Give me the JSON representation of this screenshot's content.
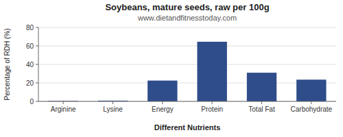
{
  "chart_data": {
    "type": "bar",
    "title": "Soybeans, mature seeds, raw per 100g",
    "subtitle": "www.dietandfitnesstoday.com",
    "xlabel": "Different Nutrients",
    "ylabel": "Percentage of RDH (%)",
    "categories": [
      "Arginine",
      "Lysine",
      "Energy",
      "Protein",
      "Total Fat",
      "Carbohydrate"
    ],
    "values": [
      0.5,
      0.8,
      22.5,
      64.5,
      31.0,
      23.5
    ],
    "color": "#2e4d8a",
    "ylim": [
      0,
      80
    ],
    "yticks": [
      0,
      20,
      40,
      60,
      80
    ],
    "grid": true
  }
}
